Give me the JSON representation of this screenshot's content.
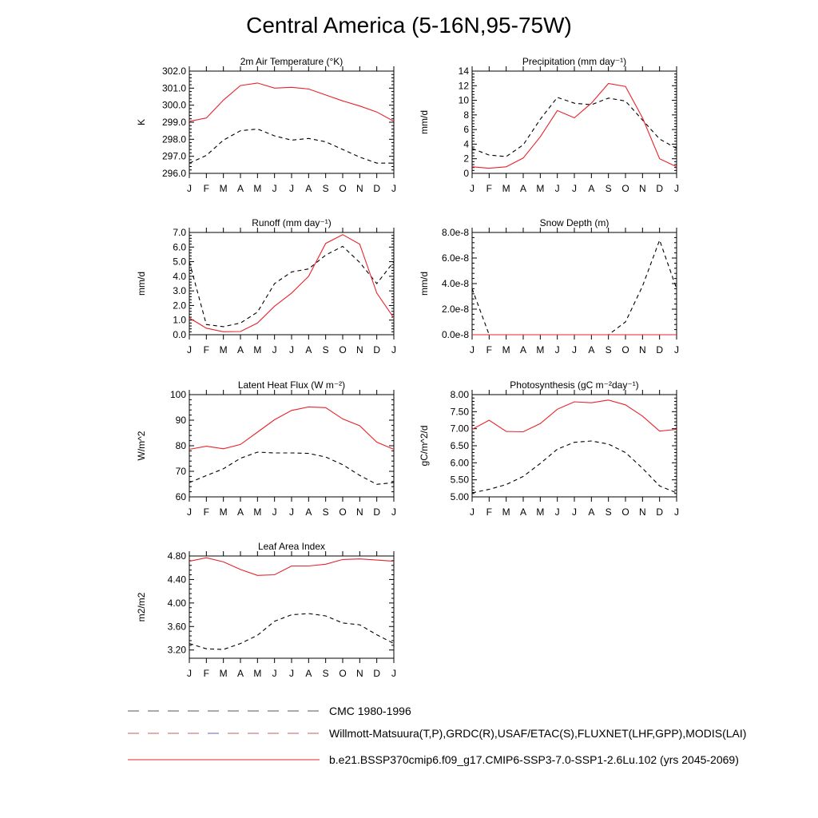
{
  "page_title": "Central America (5-16N,95-75W)",
  "colors": {
    "model": "#e8232a",
    "obs": "#000000",
    "axis": "#000000"
  },
  "legend": [
    {
      "label": "CMC 1980-1996",
      "style": "dash-gray"
    },
    {
      "label": "Willmott-Matsuura(T,P),GRDC(R),USAF/ETAC(S),FLUXNET(LHF,GPP),MODIS(LAI)",
      "style": "dash-mixed"
    },
    {
      "label": "b.e21.BSSP370cmip6.f09_g17.CMIP6-SSP3-7.0-SSP1-2.6Lu.102 (yrs 2045-2069)",
      "style": "solid-red"
    }
  ],
  "chart_data": [
    {
      "type": "line",
      "title": "2m Air Temperature (°K)",
      "ylabel": "K",
      "x": [
        "J",
        "F",
        "M",
        "A",
        "M",
        "J",
        "J",
        "A",
        "S",
        "O",
        "N",
        "D",
        "J"
      ],
      "ylim": [
        296.0,
        302.0
      ],
      "yticks": [
        "296.0",
        "297.0",
        "298.0",
        "299.0",
        "300.0",
        "301.0",
        "302.0"
      ],
      "series": [
        {
          "role": "model",
          "values": [
            299.05,
            299.25,
            300.3,
            301.15,
            301.3,
            301.0,
            301.05,
            300.95,
            300.6,
            300.25,
            299.95,
            299.6,
            299.05
          ]
        },
        {
          "role": "obs",
          "values": [
            296.6,
            297.05,
            297.95,
            298.5,
            298.6,
            298.2,
            297.95,
            298.05,
            297.85,
            297.4,
            296.95,
            296.6,
            296.6
          ]
        }
      ]
    },
    {
      "type": "line",
      "title": "Precipitation (mm day⁻¹)",
      "ylabel": "mm/d",
      "x": [
        "J",
        "F",
        "M",
        "A",
        "M",
        "J",
        "J",
        "A",
        "S",
        "O",
        "N",
        "D",
        "J"
      ],
      "ylim": [
        0,
        14
      ],
      "yticks": [
        "0",
        "2",
        "4",
        "6",
        "8",
        "10",
        "12",
        "14"
      ],
      "series": [
        {
          "role": "model",
          "values": [
            0.9,
            0.7,
            0.9,
            2.1,
            5.0,
            8.6,
            7.6,
            9.6,
            12.3,
            11.9,
            7.6,
            2.0,
            0.9
          ]
        },
        {
          "role": "obs",
          "values": [
            3.4,
            2.5,
            2.3,
            3.9,
            7.4,
            10.4,
            9.6,
            9.4,
            10.3,
            9.9,
            7.3,
            4.7,
            3.4
          ]
        }
      ]
    },
    {
      "type": "line",
      "title": "Runoff (mm day⁻¹)",
      "ylabel": "mm/d",
      "x": [
        "J",
        "F",
        "M",
        "A",
        "M",
        "J",
        "J",
        "A",
        "S",
        "O",
        "N",
        "D",
        "J"
      ],
      "ylim": [
        0.0,
        7.0
      ],
      "yticks": [
        "0.0",
        "1.0",
        "2.0",
        "3.0",
        "4.0",
        "5.0",
        "6.0",
        "7.0"
      ],
      "series": [
        {
          "role": "model",
          "values": [
            1.15,
            0.45,
            0.2,
            0.22,
            0.8,
            1.95,
            2.85,
            4.0,
            6.25,
            6.85,
            6.2,
            2.85,
            1.15
          ]
        },
        {
          "role": "obs",
          "values": [
            5.0,
            0.7,
            0.55,
            0.8,
            1.55,
            3.5,
            4.3,
            4.5,
            5.45,
            6.05,
            4.95,
            3.5,
            5.0
          ]
        }
      ]
    },
    {
      "type": "line",
      "title": "Snow Depth (m)",
      "ylabel": "mm/d",
      "x": [
        "J",
        "F",
        "M",
        "A",
        "M",
        "J",
        "J",
        "A",
        "S",
        "O",
        "N",
        "D",
        "J"
      ],
      "ylim": [
        0,
        8e-08
      ],
      "yticks": [
        "0.0e-8",
        "2.0e-8",
        "4.0e-8",
        "6.0e-8",
        "8.0e-8"
      ],
      "series": [
        {
          "role": "model",
          "values": [
            0,
            0,
            0,
            0,
            0,
            0,
            0,
            0,
            0,
            0,
            0,
            0,
            0
          ]
        },
        {
          "role": "obs",
          "values": [
            3.6e-08,
            0,
            0,
            0,
            0,
            0,
            0,
            0,
            0,
            1e-08,
            3.8e-08,
            7.4e-08,
            3.6e-08
          ]
        }
      ]
    },
    {
      "type": "line",
      "title": "Latent Heat Flux (W m⁻²)",
      "ylabel": "W/m^2",
      "x": [
        "J",
        "F",
        "M",
        "A",
        "M",
        "J",
        "J",
        "A",
        "S",
        "O",
        "N",
        "D",
        "J"
      ],
      "ylim": [
        60,
        100
      ],
      "yticks": [
        "60",
        "70",
        "80",
        "90",
        "100"
      ],
      "series": [
        {
          "role": "model",
          "values": [
            78.6,
            79.8,
            78.8,
            80.5,
            85.3,
            90.2,
            93.8,
            95.2,
            94.9,
            90.5,
            87.8,
            81.4,
            78.6
          ]
        },
        {
          "role": "obs",
          "values": [
            65.6,
            68.3,
            71.0,
            75.1,
            77.5,
            77.2,
            77.2,
            77.0,
            75.6,
            72.6,
            68.4,
            64.9,
            65.6
          ]
        }
      ]
    },
    {
      "type": "line",
      "title": "Photosynthesis (gC m⁻²day⁻¹)",
      "ylabel": "gC/m^2/d",
      "x": [
        "J",
        "F",
        "M",
        "A",
        "M",
        "J",
        "J",
        "A",
        "S",
        "O",
        "N",
        "D",
        "J"
      ],
      "ylim": [
        5.0,
        8.0
      ],
      "yticks": [
        "5.00",
        "5.50",
        "6.00",
        "6.50",
        "7.00",
        "7.50",
        "8.00"
      ],
      "series": [
        {
          "role": "model",
          "values": [
            6.98,
            7.25,
            6.92,
            6.91,
            7.15,
            7.57,
            7.79,
            7.76,
            7.84,
            7.7,
            7.37,
            6.93,
            6.98
          ]
        },
        {
          "role": "obs",
          "values": [
            5.12,
            5.22,
            5.36,
            5.6,
            5.98,
            6.4,
            6.6,
            6.64,
            6.55,
            6.3,
            5.84,
            5.32,
            5.12
          ]
        }
      ]
    },
    {
      "type": "line",
      "title": "Leaf Area Index",
      "ylabel": "m2/m2",
      "x": [
        "J",
        "F",
        "M",
        "A",
        "M",
        "J",
        "J",
        "A",
        "S",
        "O",
        "N",
        "D",
        "J"
      ],
      "ylim": [
        3.06,
        4.8
      ],
      "yticks": [
        "3.20",
        "3.60",
        "4.00",
        "4.40",
        "4.80"
      ],
      "tick_values": [
        3.2,
        3.6,
        4.0,
        4.4,
        4.8
      ],
      "series": [
        {
          "role": "model",
          "values": [
            4.71,
            4.77,
            4.7,
            4.57,
            4.47,
            4.48,
            4.63,
            4.63,
            4.66,
            4.74,
            4.75,
            4.73,
            4.71
          ]
        },
        {
          "role": "obs",
          "values": [
            3.31,
            3.22,
            3.21,
            3.31,
            3.45,
            3.69,
            3.8,
            3.82,
            3.78,
            3.66,
            3.63,
            3.46,
            3.31
          ]
        }
      ]
    }
  ]
}
